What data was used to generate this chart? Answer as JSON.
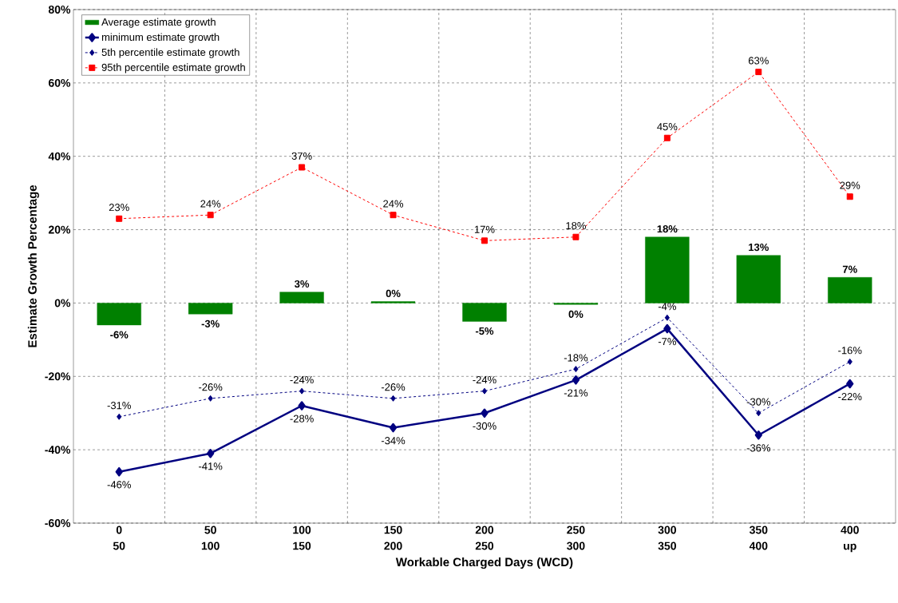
{
  "chart_data": {
    "type": "bar",
    "xlabel": "Workable Charged Days (WCD)",
    "ylabel": "Estimate Growth Percentage",
    "categories": [
      "0 50",
      "50 100",
      "100 150",
      "150 200",
      "200 250",
      "250 300",
      "300 350",
      "350 400",
      "400 up"
    ],
    "series": [
      {
        "name": "Average estimate growth",
        "color": "#008000",
        "values": [
          -6,
          -3,
          3,
          0.4,
          -5,
          -0.4,
          18,
          13,
          7
        ],
        "value_labels": [
          "-6%",
          "-3%",
          "3%",
          "0%",
          "-5%",
          "0%",
          "18%",
          "13%",
          "7%"
        ]
      },
      {
        "name": "minimum estimate growth",
        "type": "line",
        "color": "#000080",
        "marker": "diamond",
        "line_style": "solid",
        "values": [
          -46,
          -41,
          -28,
          -34,
          -30,
          -21,
          -7,
          -36,
          -22
        ],
        "value_labels": [
          "-46%",
          "-41%",
          "-28%",
          "-34%",
          "-30%",
          "-21%",
          "-7%",
          "-36%",
          "-22%"
        ]
      },
      {
        "name": "5th percentile estimate growth",
        "type": "line",
        "color": "#000080",
        "marker": "diamond",
        "line_style": "dashed",
        "values": [
          -31,
          -26,
          -24,
          -26,
          -24,
          -18,
          -4,
          -30,
          -16
        ],
        "value_labels": [
          "-31%",
          "-26%",
          "-24%",
          "-26%",
          "-24%",
          "-18%",
          "-4%",
          "-30%",
          "-16%"
        ]
      },
      {
        "name": "95th percentile estimate growth",
        "type": "line",
        "color": "#ff0000",
        "marker": "square",
        "line_style": "dashed",
        "values": [
          23,
          24,
          37,
          24,
          17,
          18,
          45,
          63,
          29
        ],
        "value_labels": [
          "23%",
          "24%",
          "37%",
          "24%",
          "17%",
          "18%",
          "45%",
          "63%",
          "29%"
        ]
      }
    ],
    "ylim": [
      -60,
      80
    ],
    "yticks": [
      {
        "value": -60,
        "label": "-60%"
      },
      {
        "value": -40,
        "label": "-40%"
      },
      {
        "value": -20,
        "label": "-20%"
      },
      {
        "value": 0,
        "label": "0%"
      },
      {
        "value": 20,
        "label": "20%"
      },
      {
        "value": 40,
        "label": "40%"
      },
      {
        "value": 60,
        "label": "60%"
      },
      {
        "value": 80,
        "label": "80%"
      }
    ],
    "grid": true,
    "legend": "top left"
  }
}
